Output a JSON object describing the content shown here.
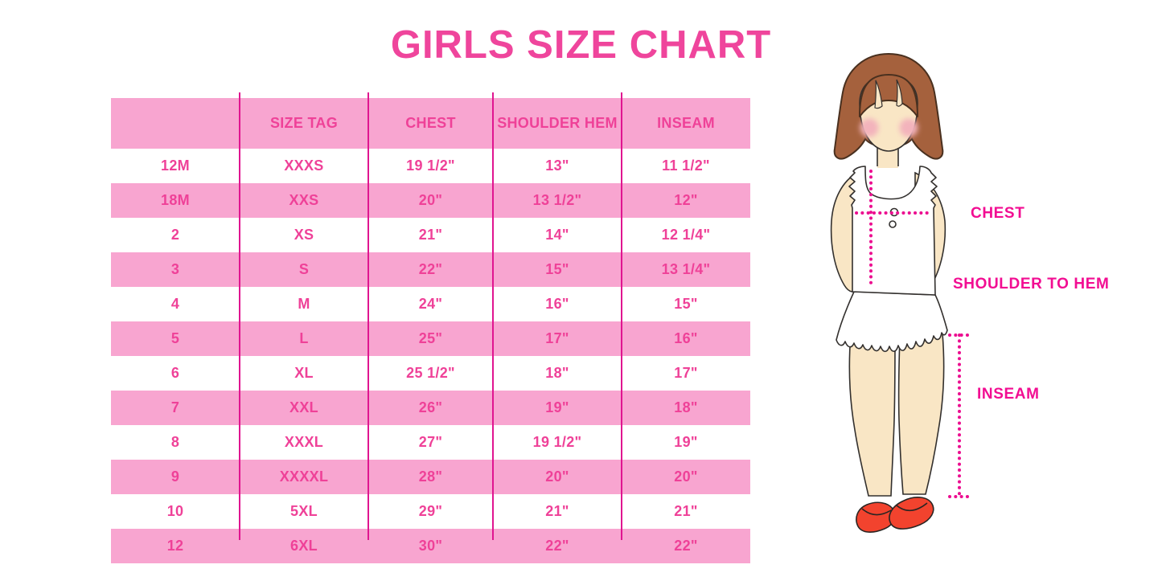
{
  "title": "GIRLS SIZE CHART",
  "chart_data": {
    "type": "table",
    "title": "GIRLS SIZE CHART",
    "columns": [
      "",
      "SIZE TAG",
      "CHEST",
      "SHOULDER HEM",
      "INSEAM"
    ],
    "rows": [
      [
        "12M",
        "XXXS",
        "19 1/2\"",
        "13\"",
        "11 1/2\""
      ],
      [
        "18M",
        "XXS",
        "20\"",
        "13 1/2\"",
        "12\""
      ],
      [
        "2",
        "XS",
        "21\"",
        "14\"",
        "12 1/4\""
      ],
      [
        "3",
        "S",
        "22\"",
        "15\"",
        "13 1/4\""
      ],
      [
        "4",
        "M",
        "24\"",
        "16\"",
        "15\""
      ],
      [
        "5",
        "L",
        "25\"",
        "17\"",
        "16\""
      ],
      [
        "6",
        "XL",
        "25 1/2\"",
        "18\"",
        "17\""
      ],
      [
        "7",
        "XXL",
        "26\"",
        "19\"",
        "18\""
      ],
      [
        "8",
        "XXXL",
        "27\"",
        "19 1/2\"",
        "19\""
      ],
      [
        "9",
        "XXXXL",
        "28\"",
        "20\"",
        "20\""
      ],
      [
        "10",
        "5XL",
        "29\"",
        "21\"",
        "21\""
      ],
      [
        "12",
        "6XL",
        "30\"",
        "22\"",
        "22\""
      ]
    ],
    "zebra_striping": "white and pink alternating rows, header pink",
    "legend_position": "none",
    "grid": "vertical magenta column dividers only"
  },
  "measurement_labels": {
    "chest": "CHEST",
    "shoulder_to_hem": "SHOULDER TO HEM",
    "inseam": "INSEAM"
  },
  "colors": {
    "title_pink": "#EF459C",
    "row_band_pink": "#F8A5D0",
    "table_text_pink": "#EF4198",
    "divider_magenta": "#E01590",
    "dotted_line_magenta": "#EC0E90",
    "label_magenta": "#F20D92",
    "hair_brown": "#A5613D",
    "skin_tone": "#F9E6C5",
    "blush_pink": "#F3B3BC",
    "shoe_red": "#F2432E",
    "garment_white": "#FFFFFF"
  }
}
